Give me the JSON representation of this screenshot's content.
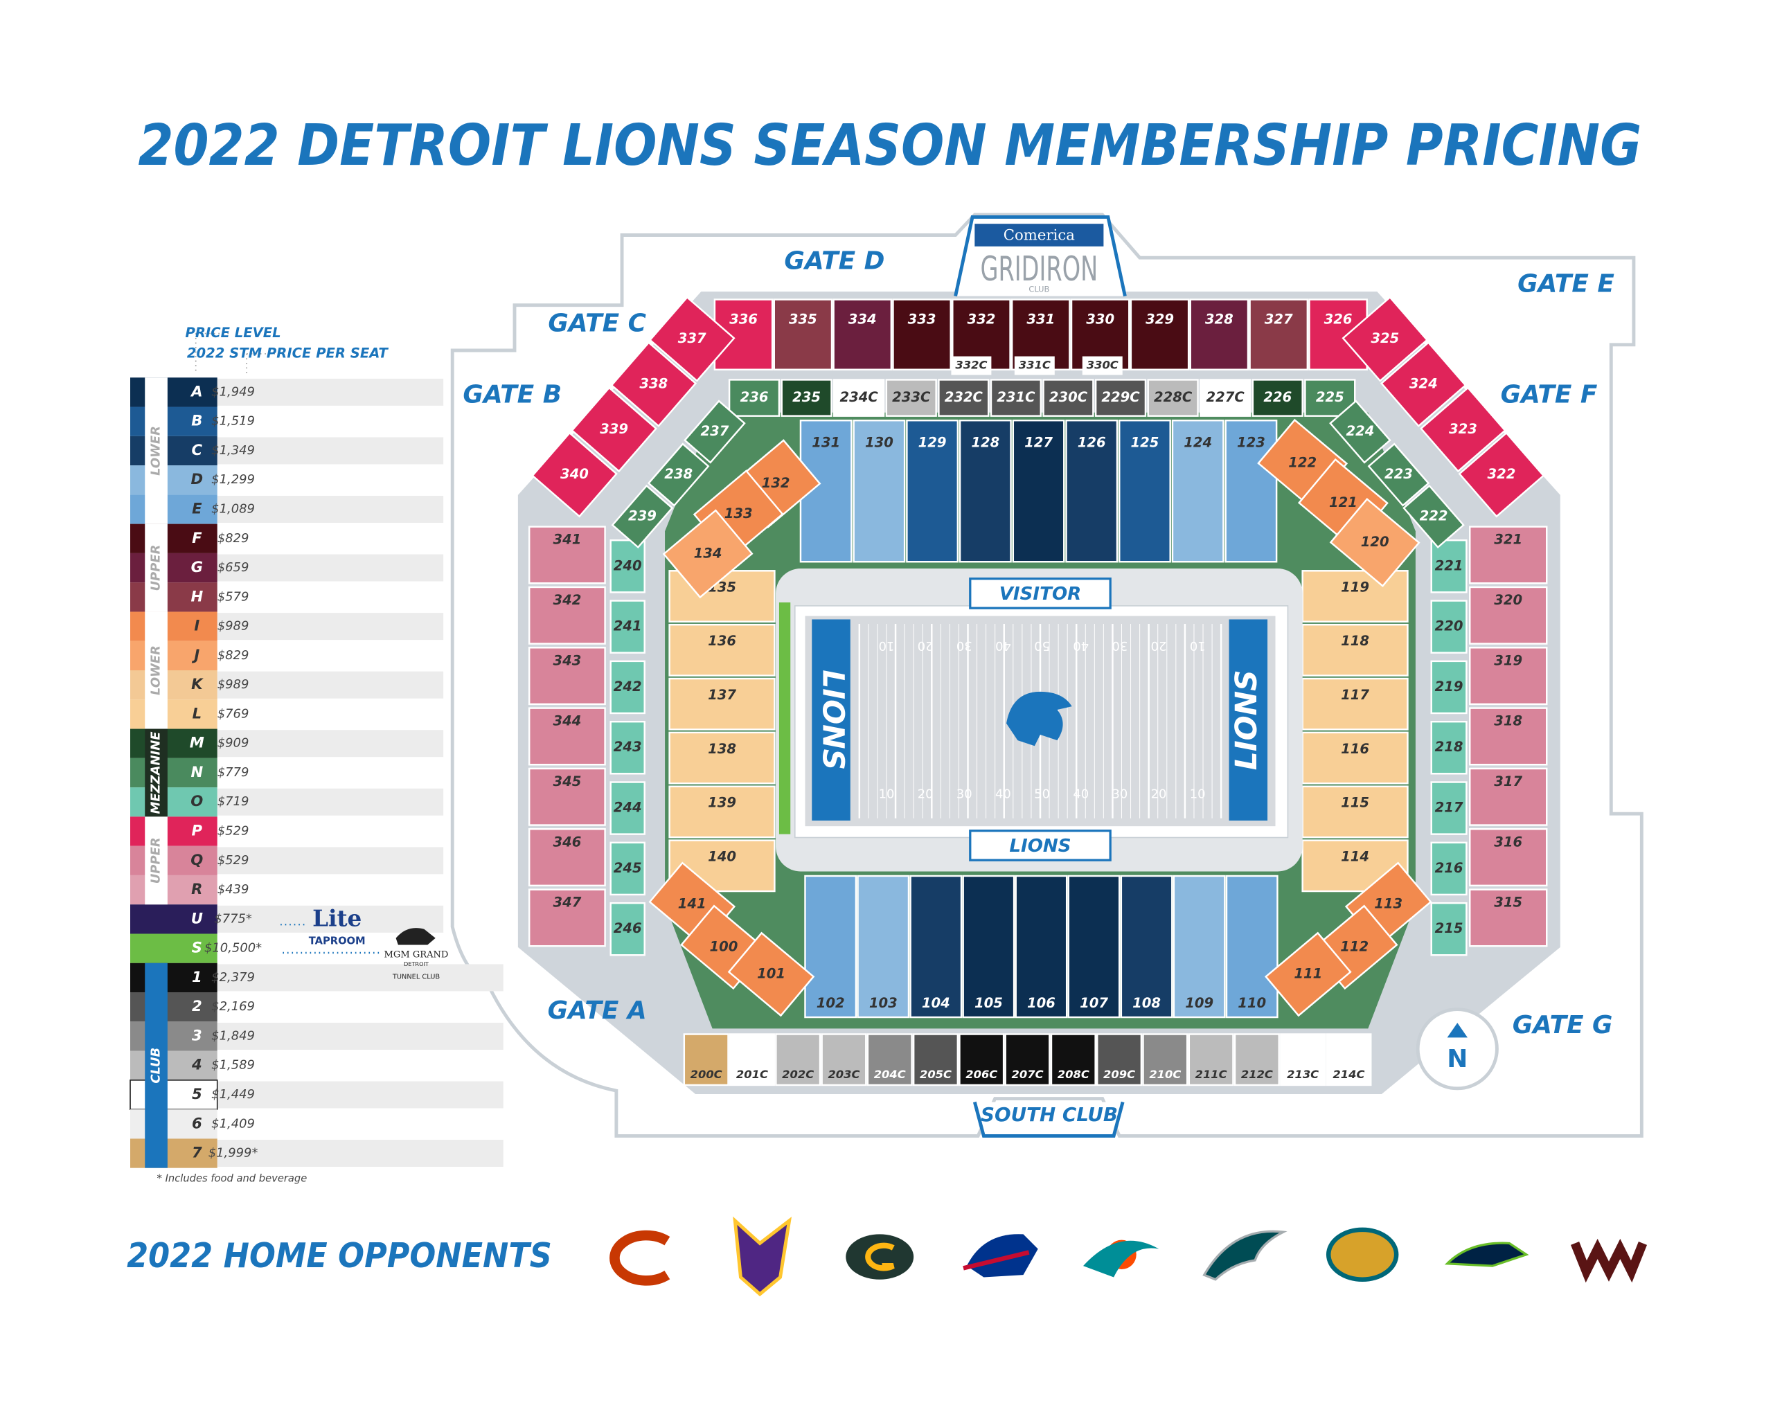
{
  "header": {
    "title": "2022 DETROIT LIONS SEASON MEMBERSHIP PRICING"
  },
  "legend": {
    "price_level_label": "PRICE LEVEL",
    "price_label": "2022 STM PRICE PER SEAT",
    "rows": [
      {
        "level": "A",
        "price": "$1,949",
        "color": "#0c2f52"
      },
      {
        "level": "B",
        "price": "$1,519",
        "color": "#1d5a94"
      },
      {
        "level": "C",
        "price": "$1,349",
        "color": "#163d66"
      },
      {
        "level": "D",
        "price": "$1,299",
        "color": "#8ab8de"
      },
      {
        "level": "E",
        "price": "$1,089",
        "color": "#6ea7d8"
      },
      {
        "level": "F",
        "price": "$829",
        "color": "#4a0c14"
      },
      {
        "level": "G",
        "price": "$659",
        "color": "#6b1f3e"
      },
      {
        "level": "H",
        "price": "$579",
        "color": "#8a3a48"
      },
      {
        "level": "I",
        "price": "$989",
        "color": "#f28a4e"
      },
      {
        "level": "J",
        "price": "$829",
        "color": "#f8a56c"
      },
      {
        "level": "K",
        "price": "$989",
        "color": "#f3c995"
      },
      {
        "level": "L",
        "price": "$769",
        "color": "#f8cf96"
      },
      {
        "level": "M",
        "price": "$909",
        "color": "#1f4a2a"
      },
      {
        "level": "N",
        "price": "$779",
        "color": "#4a8a5e"
      },
      {
        "level": "O",
        "price": "$719",
        "color": "#6fc8b0"
      },
      {
        "level": "P",
        "price": "$529",
        "color": "#e0245a"
      },
      {
        "level": "Q",
        "price": "$529",
        "color": "#d8849a"
      },
      {
        "level": "R",
        "price": "$439",
        "color": "#e0a0b0"
      },
      {
        "level": "U",
        "price": "$775*",
        "color": "#2a1e5a"
      },
      {
        "level": "S",
        "price": "$10,500*",
        "color": "#6cbd45"
      },
      {
        "level": "1",
        "price": "$2,379",
        "color": "#111111"
      },
      {
        "level": "2",
        "price": "$2,169",
        "color": "#555555"
      },
      {
        "level": "3",
        "price": "$1,849",
        "color": "#8a8a8a"
      },
      {
        "level": "4",
        "price": "$1,589",
        "color": "#bbbbbb"
      },
      {
        "level": "5",
        "price": "$1,449",
        "color": "#ffffff"
      },
      {
        "level": "6",
        "price": "$1,409",
        "color": "#eeeeee"
      },
      {
        "level": "7",
        "price": "$1,999*",
        "color": "#d4a96a"
      }
    ],
    "groups": [
      {
        "label": "LOWER",
        "color": "#ffffff"
      },
      {
        "label": "UPPER",
        "color": "#ffffff"
      },
      {
        "label": "LOWER",
        "color": "#ffffff"
      },
      {
        "label": "MEZZANINE",
        "color": "#1f2f22"
      },
      {
        "label": "UPPER",
        "color": "#ffffff"
      },
      {
        "label": "CLUB",
        "color": "#1b75bc"
      }
    ],
    "footnote": "* Includes food and beverage"
  },
  "sponsors": {
    "taproom": [
      "Lite",
      "TAPROOM"
    ],
    "tunnel": [
      "MGM GRAND",
      "DETROIT",
      "TUNNEL CLUB"
    ],
    "gridiron": [
      "Comerica",
      "GRIDIRON",
      "CLUB"
    ]
  },
  "gates": [
    "GATE A",
    "GATE B",
    "GATE C",
    "GATE D",
    "GATE E",
    "GATE F",
    "GATE G"
  ],
  "field": {
    "visitor": "VISITOR",
    "home": "LIONS",
    "endzone": "LIONS",
    "yards": [
      "10",
      "20",
      "30",
      "40",
      "50",
      "40",
      "30",
      "20",
      "10"
    ]
  },
  "south_club": "SOUTH CLUB",
  "compass": "N",
  "sections": {
    "upper_top": [
      {
        "label": "336",
        "color": "#e0245a"
      },
      {
        "label": "335",
        "color": "#8a3a48"
      },
      {
        "label": "334",
        "color": "#6b1f3e"
      },
      {
        "label": "333",
        "color": "#4a0c14"
      },
      {
        "label": "332",
        "color": "#4a0c14"
      },
      {
        "label": "331",
        "color": "#4a0c14"
      },
      {
        "label": "330",
        "color": "#4a0c14"
      },
      {
        "label": "329",
        "color": "#4a0c14"
      },
      {
        "label": "328",
        "color": "#6b1f3e"
      },
      {
        "label": "327",
        "color": "#8a3a48"
      },
      {
        "label": "326",
        "color": "#e0245a"
      }
    ],
    "club_upper_top": [
      {
        "label": "332C",
        "color": "#ffffff"
      },
      {
        "label": "331C",
        "color": "#ffffff"
      },
      {
        "label": "330C",
        "color": "#ffffff"
      }
    ],
    "mezz_top": [
      {
        "label": "236",
        "color": "#4a8a5e"
      },
      {
        "label": "235",
        "color": "#1f4a2a"
      },
      {
        "label": "234C",
        "color": "#ffffff"
      },
      {
        "label": "233C",
        "color": "#bbbbbb"
      },
      {
        "label": "232C",
        "color": "#555555"
      },
      {
        "label": "231C",
        "color": "#555555"
      },
      {
        "label": "230C",
        "color": "#555555"
      },
      {
        "label": "229C",
        "color": "#555555"
      },
      {
        "label": "228C",
        "color": "#bbbbbb"
      },
      {
        "label": "227C",
        "color": "#ffffff"
      },
      {
        "label": "226",
        "color": "#1f4a2a"
      },
      {
        "label": "225",
        "color": "#4a8a5e"
      }
    ],
    "lower_top": [
      {
        "label": "131",
        "color": "#6ea7d8"
      },
      {
        "label": "130",
        "color": "#8ab8de"
      },
      {
        "label": "129",
        "color": "#1d5a94"
      },
      {
        "label": "128",
        "color": "#163d66"
      },
      {
        "label": "127",
        "color": "#0c2f52"
      },
      {
        "label": "126",
        "color": "#163d66"
      },
      {
        "label": "125",
        "color": "#1d5a94"
      },
      {
        "label": "124",
        "color": "#8ab8de"
      },
      {
        "label": "123",
        "color": "#6ea7d8"
      }
    ],
    "upper_left": [
      {
        "label": "341",
        "color": "#d8849a"
      },
      {
        "label": "342",
        "color": "#d8849a"
      },
      {
        "label": "343",
        "color": "#d8849a"
      },
      {
        "label": "344",
        "color": "#d8849a"
      },
      {
        "label": "345",
        "color": "#d8849a"
      },
      {
        "label": "346",
        "color": "#d8849a"
      },
      {
        "label": "347",
        "color": "#d8849a"
      }
    ],
    "mezz_left": [
      {
        "label": "240",
        "color": "#6fc8b0"
      },
      {
        "label": "241",
        "color": "#6fc8b0"
      },
      {
        "label": "242",
        "color": "#6fc8b0"
      },
      {
        "label": "243",
        "color": "#6fc8b0"
      },
      {
        "label": "244",
        "color": "#6fc8b0"
      },
      {
        "label": "245",
        "color": "#6fc8b0"
      },
      {
        "label": "246",
        "color": "#6fc8b0"
      }
    ],
    "lower_left": [
      {
        "label": "135",
        "color": "#f8cf96"
      },
      {
        "label": "136",
        "color": "#f8cf96"
      },
      {
        "label": "137",
        "color": "#f8cf96"
      },
      {
        "label": "138",
        "color": "#f8cf96"
      },
      {
        "label": "139",
        "color": "#f8cf96"
      },
      {
        "label": "140",
        "color": "#f8cf96"
      }
    ],
    "upper_right": [
      {
        "label": "321",
        "color": "#d8849a"
      },
      {
        "label": "320",
        "color": "#d8849a"
      },
      {
        "label": "319",
        "color": "#d8849a"
      },
      {
        "label": "318",
        "color": "#d8849a"
      },
      {
        "label": "317",
        "color": "#d8849a"
      },
      {
        "label": "316",
        "color": "#d8849a"
      },
      {
        "label": "315",
        "color": "#d8849a"
      }
    ],
    "mezz_right": [
      {
        "label": "221",
        "color": "#6fc8b0"
      },
      {
        "label": "220",
        "color": "#6fc8b0"
      },
      {
        "label": "219",
        "color": "#6fc8b0"
      },
      {
        "label": "218",
        "color": "#6fc8b0"
      },
      {
        "label": "217",
        "color": "#6fc8b0"
      },
      {
        "label": "216",
        "color": "#6fc8b0"
      },
      {
        "label": "215",
        "color": "#6fc8b0"
      }
    ],
    "lower_right": [
      {
        "label": "119",
        "color": "#f8cf96"
      },
      {
        "label": "118",
        "color": "#f8cf96"
      },
      {
        "label": "117",
        "color": "#f8cf96"
      },
      {
        "label": "116",
        "color": "#f8cf96"
      },
      {
        "label": "115",
        "color": "#f8cf96"
      },
      {
        "label": "114",
        "color": "#f8cf96"
      }
    ],
    "lower_bottom": [
      {
        "label": "102",
        "color": "#6ea7d8"
      },
      {
        "label": "103",
        "color": "#8ab8de"
      },
      {
        "label": "104",
        "color": "#163d66"
      },
      {
        "label": "105",
        "color": "#0c2f52"
      },
      {
        "label": "106",
        "color": "#0c2f52"
      },
      {
        "label": "107",
        "color": "#0c2f52"
      },
      {
        "label": "108",
        "color": "#163d66"
      },
      {
        "label": "109",
        "color": "#8ab8de"
      },
      {
        "label": "110",
        "color": "#6ea7d8"
      }
    ],
    "club_bottom": [
      {
        "label": "200C",
        "color": "#d4a96a"
      },
      {
        "label": "201C",
        "color": "#ffffff"
      },
      {
        "label": "202C",
        "color": "#bbbbbb"
      },
      {
        "label": "203C",
        "color": "#bbbbbb"
      },
      {
        "label": "204C",
        "color": "#8a8a8a"
      },
      {
        "label": "205C",
        "color": "#555555"
      },
      {
        "label": "206C",
        "color": "#111111"
      },
      {
        "label": "207C",
        "color": "#111111"
      },
      {
        "label": "208C",
        "color": "#111111"
      },
      {
        "label": "209C",
        "color": "#555555"
      },
      {
        "label": "210C",
        "color": "#8a8a8a"
      },
      {
        "label": "211C",
        "color": "#bbbbbb"
      },
      {
        "label": "212C",
        "color": "#bbbbbb"
      },
      {
        "label": "213C",
        "color": "#ffffff"
      },
      {
        "label": "214C",
        "color": "#ffffff"
      }
    ],
    "upper_tl": [
      {
        "label": "337",
        "color": "#e0245a"
      },
      {
        "label": "338",
        "color": "#e0245a"
      },
      {
        "label": "339",
        "color": "#e0245a"
      },
      {
        "label": "340",
        "color": "#e0245a"
      }
    ],
    "upper_tr": [
      {
        "label": "325",
        "color": "#e0245a"
      },
      {
        "label": "324",
        "color": "#e0245a"
      },
      {
        "label": "323",
        "color": "#e0245a"
      },
      {
        "label": "322",
        "color": "#e0245a"
      }
    ],
    "mezz_tl": [
      {
        "label": "237",
        "color": "#4a8a5e"
      },
      {
        "label": "238",
        "color": "#4a8a5e"
      },
      {
        "label": "239",
        "color": "#4a8a5e"
      }
    ],
    "mezz_tr": [
      {
        "label": "224",
        "color": "#4a8a5e"
      },
      {
        "label": "223",
        "color": "#4a8a5e"
      },
      {
        "label": "222",
        "color": "#4a8a5e"
      }
    ],
    "lower_tl": [
      {
        "label": "132",
        "color": "#f28a4e"
      },
      {
        "label": "133",
        "color": "#f28a4e"
      },
      {
        "label": "134",
        "color": "#f8a56c"
      }
    ],
    "lower_tr": [
      {
        "label": "122",
        "color": "#f28a4e"
      },
      {
        "label": "121",
        "color": "#f28a4e"
      },
      {
        "label": "120",
        "color": "#f8a56c"
      }
    ],
    "lower_bl": [
      {
        "label": "141",
        "color": "#f28a4e"
      },
      {
        "label": "100",
        "color": "#f28a4e"
      },
      {
        "label": "101",
        "color": "#f28a4e"
      }
    ],
    "lower_br": [
      {
        "label": "113",
        "color": "#f28a4e"
      },
      {
        "label": "112",
        "color": "#f28a4e"
      },
      {
        "label": "111",
        "color": "#f28a4e"
      }
    ]
  },
  "opponents": {
    "title": "2022 HOME OPPONENTS"
  }
}
